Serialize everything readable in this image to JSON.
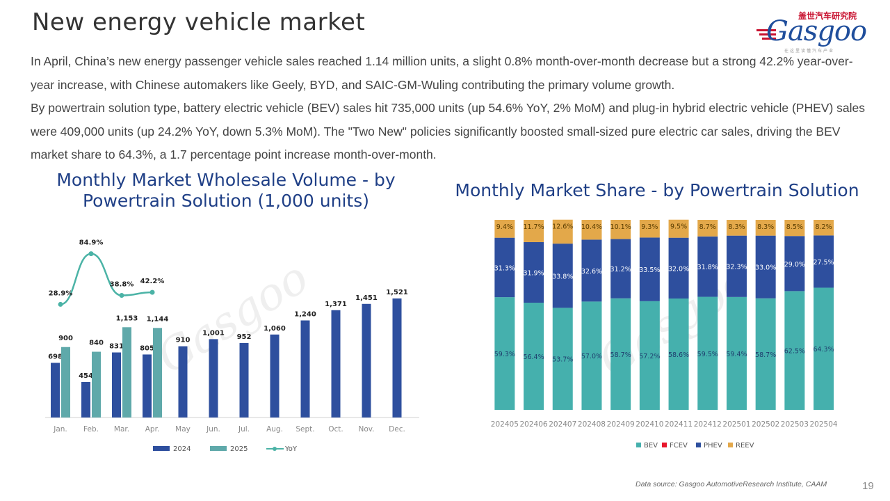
{
  "header": {
    "title": "New energy vehicle market",
    "logo_cn": "盖世汽车研究院",
    "logo_text": "Gasgoo",
    "logo_tag": "在这里读懂汽车产业"
  },
  "summary": {
    "paragraph1": "In April, China’s new energy passenger vehicle sales reached 1.14 million units, a slight 0.8% month-over-month decrease but a strong 42.2% year-over-year increase, with Chinese automakers like Geely, BYD, and SAIC-GM-Wuling contributing the primary volume growth.",
    "paragraph2": "By powertrain solution type, battery electric vehicle (BEV) sales hit 735,000 units (up 54.6% YoY, 2% MoM) and plug-in hybrid electric vehicle (PHEV) sales were 409,000 units (up 24.2% YoY, down 5.3% MoM). The \"Two New\" policies significantly boosted small-sized pure electric car sales, driving the BEV market share to 64.3%, a 1.7 percentage point increase month-over-month."
  },
  "colors": {
    "series_2024": "#2e4f9e",
    "series_2025": "#5fa9aa",
    "yoy": "#4bb3a6",
    "bev": "#45b0ad",
    "fcev": "#e8162c",
    "phev": "#2e4f9e",
    "reev": "#e3a84a"
  },
  "chart_data": [
    {
      "type": "bar",
      "title": "Monthly Market Wholesale Volume - by Powertrain Solution (1,000 units)",
      "categories": [
        "Jan.",
        "Feb.",
        "Mar.",
        "Apr.",
        "May",
        "Jun.",
        "Jul.",
        "Aug.",
        "Sept.",
        "Oct.",
        "Nov.",
        "Dec."
      ],
      "series": [
        {
          "name": "2024",
          "values": [
            698,
            454,
            831,
            805,
            910,
            1001,
            952,
            1060,
            1240,
            1371,
            1451,
            1521
          ]
        },
        {
          "name": "2025",
          "values": [
            900,
            840,
            1153,
            1144,
            null,
            null,
            null,
            null,
            null,
            null,
            null,
            null
          ]
        }
      ],
      "line_series": {
        "name": "YoY",
        "values": [
          28.9,
          84.9,
          38.8,
          42.2
        ],
        "labels": [
          "28.9%",
          "84.9%",
          "38.8%",
          "42.2%"
        ]
      },
      "value_labels": {
        "2024": [
          "698",
          "454",
          "831",
          "805",
          "910",
          "1,001",
          "952",
          "1,060",
          "1,240",
          "1,371",
          "1,451",
          "1,521"
        ],
        "2025": [
          "900",
          "840",
          "1,153",
          "1,144"
        ]
      },
      "ylim": [
        0,
        1600
      ],
      "legend": "bottom",
      "grid": false
    },
    {
      "type": "bar",
      "stacked": true,
      "title": "Monthly Market Share - by Powertrain Solution",
      "categories": [
        "202405",
        "202406",
        "202407",
        "202408",
        "202409",
        "202410",
        "202411",
        "202412",
        "202501",
        "202502",
        "202503",
        "202504"
      ],
      "series": [
        {
          "name": "BEV",
          "values": [
            59.3,
            56.4,
            53.7,
            57.0,
            58.7,
            57.2,
            58.6,
            59.5,
            59.4,
            58.7,
            62.5,
            64.3
          ]
        },
        {
          "name": "FCEV",
          "values": [
            0,
            0,
            0,
            0,
            0,
            0,
            0,
            0,
            0,
            0,
            0,
            0
          ]
        },
        {
          "name": "PHEV",
          "values": [
            31.3,
            31.9,
            33.8,
            32.6,
            31.2,
            33.5,
            32.0,
            31.8,
            32.3,
            33.0,
            29.0,
            27.5
          ]
        },
        {
          "name": "REEV",
          "values": [
            9.4,
            11.7,
            12.6,
            10.4,
            10.1,
            9.3,
            9.5,
            8.7,
            8.3,
            8.3,
            8.5,
            8.2
          ]
        }
      ],
      "value_labels": {
        "BEV": [
          "59.3%",
          "56.4%",
          "53.7%",
          "57.0%",
          "58.7%",
          "57.2%",
          "58.6%",
          "59.5%",
          "59.4%",
          "58.7%",
          "62.5%",
          "64.3%"
        ],
        "PHEV": [
          "31.3%",
          "31.9%",
          "33.8%",
          "32.6%",
          "31.2%",
          "33.5%",
          "32.0%",
          "31.8%",
          "32.3%",
          "33.0%",
          "29.0%",
          "27.5%"
        ],
        "REEV": [
          "9.4%",
          "11.7%",
          "12.6%",
          "10.4%",
          "10.1%",
          "9.3%",
          "9.5%",
          "8.7%",
          "8.3%",
          "8.3%",
          "8.5%",
          "8.2%"
        ]
      },
      "ylim": [
        0,
        100
      ],
      "legend": "bottom",
      "grid": false
    }
  ],
  "footer": {
    "source": "Data source: Gasgoo AutomotiveResearch Institute, CAAM",
    "page_number": "19"
  }
}
